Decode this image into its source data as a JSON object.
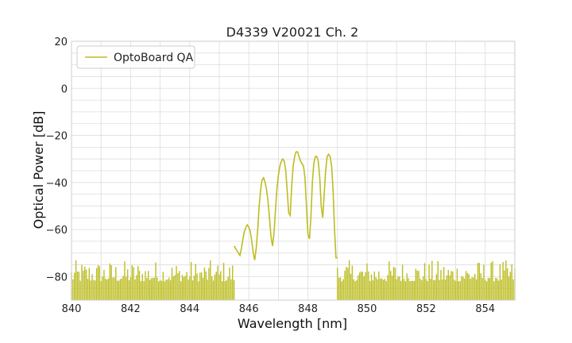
{
  "chart_data": {
    "type": "line",
    "title": "D4339 V20021 Ch. 2",
    "xlabel": "Wavelength [nm]",
    "ylabel": "Optical Power [dB]",
    "xlim": [
      840,
      855
    ],
    "ylim": [
      -90,
      20
    ],
    "xticks": [
      840,
      842,
      844,
      846,
      848,
      850,
      852,
      854
    ],
    "yticks": [
      20,
      0,
      -20,
      -40,
      -60,
      -80
    ],
    "ytick_labels": [
      "20",
      "0",
      "−20",
      "−40",
      "−60",
      "−80"
    ],
    "grid": true,
    "legend_position": "top-left",
    "color": "#bcbd22",
    "series": [
      {
        "name": "OptoBoard QA",
        "noise_floor_ranges": [
          [
            840.0,
            845.5
          ],
          [
            849.0,
            855.0
          ]
        ],
        "noise_level": [
          -90,
          -73
        ],
        "x": [
          845.5,
          845.6,
          845.7,
          845.75,
          845.8,
          845.85,
          845.9,
          845.95,
          846.0,
          846.05,
          846.1,
          846.15,
          846.2,
          846.25,
          846.3,
          846.35,
          846.4,
          846.45,
          846.5,
          846.55,
          846.6,
          846.65,
          846.7,
          846.75,
          846.8,
          846.85,
          846.9,
          846.95,
          847.0,
          847.05,
          847.1,
          847.15,
          847.2,
          847.25,
          847.3,
          847.35,
          847.4,
          847.45,
          847.5,
          847.55,
          847.6,
          847.65,
          847.7,
          847.75,
          847.8,
          847.85,
          847.9,
          847.95,
          848.0,
          848.05,
          848.1,
          848.15,
          848.2,
          848.25,
          848.3,
          848.35,
          848.4,
          848.45,
          848.5,
          848.55,
          848.6,
          848.65,
          848.7,
          848.75,
          848.8,
          848.85,
          848.9,
          848.95,
          849.0
        ],
        "y": [
          -67,
          -69,
          -71,
          -68,
          -64,
          -61,
          -59,
          -58,
          -59,
          -61,
          -65,
          -70,
          -73,
          -68,
          -60,
          -50,
          -43,
          -39,
          -38,
          -40,
          -43,
          -48,
          -55,
          -63,
          -67,
          -62,
          -52,
          -43,
          -37,
          -33,
          -31,
          -30,
          -31,
          -35,
          -44,
          -53,
          -54,
          -42,
          -33,
          -29,
          -27,
          -27,
          -29,
          -31,
          -32,
          -33,
          -38,
          -50,
          -62,
          -64,
          -55,
          -40,
          -32,
          -29,
          -29,
          -31,
          -38,
          -50,
          -55,
          -45,
          -35,
          -29,
          -28,
          -29,
          -33,
          -43,
          -60,
          -72,
          -72
        ]
      }
    ]
  }
}
